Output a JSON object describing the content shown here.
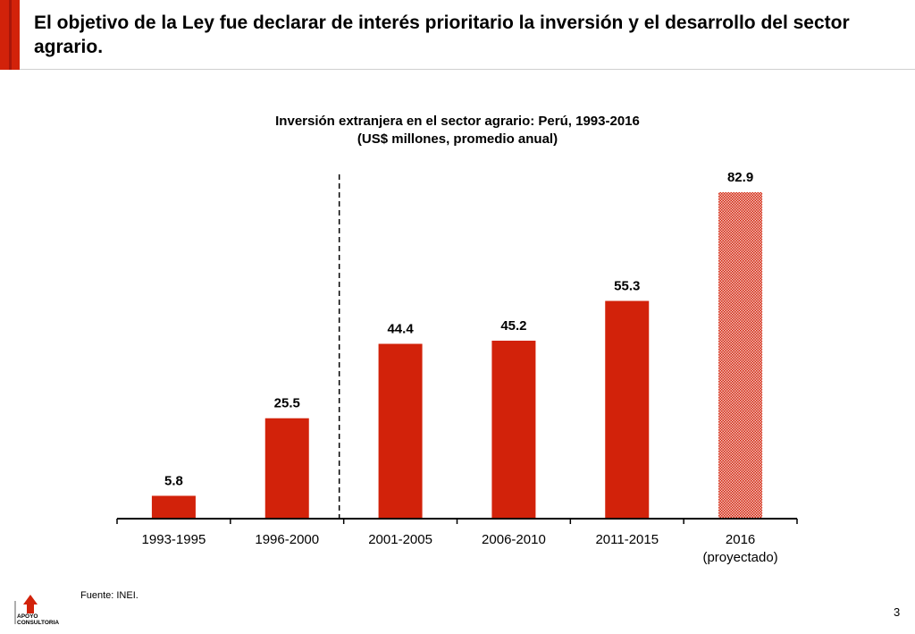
{
  "header": {
    "title": "El objetivo de la Ley fue declarar de interés prioritario la inversión y el desarrollo del sector agrario."
  },
  "chart_data": {
    "type": "bar",
    "title": "Inversión extranjera en el sector agrario: Perú, 1993-2016",
    "subtitle": "(US$ millones, promedio anual)",
    "categories": [
      "1993-1995",
      "1996-2000",
      "2001-2005",
      "2006-2010",
      "2011-2015",
      "2016"
    ],
    "category_sublabels": [
      "",
      "",
      "",
      "",
      "",
      "(proyectado)"
    ],
    "values": [
      5.8,
      25.5,
      44.4,
      45.2,
      55.3,
      82.9
    ],
    "value_labels": [
      "5.8",
      "25.5",
      "44.4",
      "45.2",
      "55.3",
      "82.9"
    ],
    "projected": [
      false,
      false,
      false,
      false,
      false,
      true
    ],
    "ylim": [
      0,
      82.9
    ],
    "xlabel": "",
    "ylabel": "",
    "grid": false,
    "separator_after_category": "1996-2000",
    "bar_color": "#d2220a"
  },
  "footer": {
    "source": "Fuente: INEI.",
    "page_number": "3"
  },
  "logo": {
    "line1": "APOYO",
    "line2": "CONSULTORIA"
  }
}
